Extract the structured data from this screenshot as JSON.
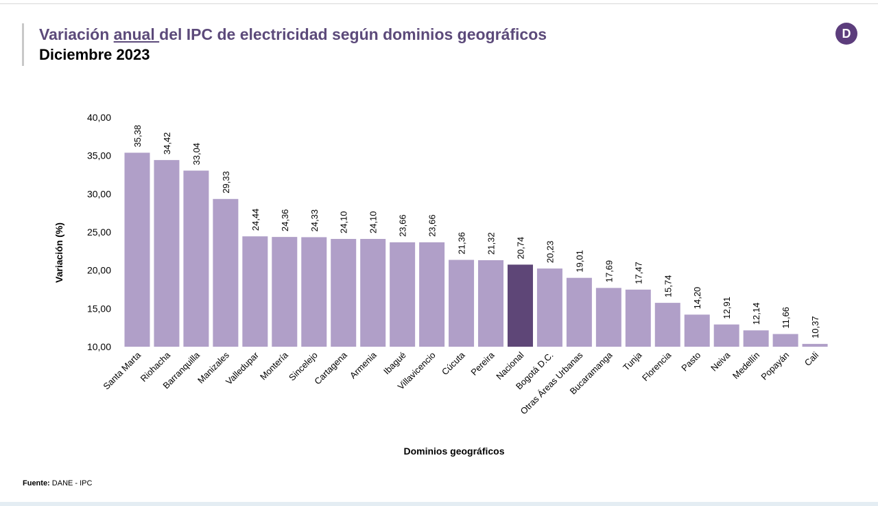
{
  "header": {
    "title_pre": "Variación ",
    "title_underlined": "anual ",
    "title_post": "del IPC de electricidad según dominios geográficos",
    "subtitle": "Diciembre 2023",
    "logo_icon": "dane-logo-icon",
    "logo_letter": "D"
  },
  "footer": {
    "source_label": "Fuente:",
    "source_text": " DANE - IPC"
  },
  "colors": {
    "bar": "#b09fc8",
    "highlight": "#5e4677",
    "title": "#5c4a7a"
  },
  "chart_data": {
    "type": "bar",
    "xlabel": "Dominios geográficos",
    "ylabel": "Variación (%)",
    "ylim": [
      10,
      40
    ],
    "yticks": [
      "10,00",
      "15,00",
      "20,00",
      "25,00",
      "30,00",
      "35,00",
      "40,00"
    ],
    "grid": false,
    "highlight_category": "Nacional",
    "categories": [
      "Santa Marta",
      "Riohacha",
      "Barranquilla",
      "Manizales",
      "Valledupar",
      "Montería",
      "Sincelejo",
      "Cartagena",
      "Armenia",
      "Ibagué",
      "Villavicencio",
      "Cúcuta",
      "Pereira",
      "Nacional",
      "Bogotá D.C.",
      "Otras Áreas Urbanas",
      "Bucaramanga",
      "Tunja",
      "Florencia",
      "Pasto",
      "Neiva",
      "Medellín",
      "Popayán",
      "Cali"
    ],
    "values": [
      35.38,
      34.42,
      33.04,
      29.33,
      24.44,
      24.36,
      24.33,
      24.1,
      24.1,
      23.66,
      23.66,
      21.36,
      21.32,
      20.74,
      20.23,
      19.01,
      17.69,
      17.47,
      15.74,
      14.2,
      12.91,
      12.14,
      11.66,
      10.37
    ],
    "data_labels": [
      "35,38",
      "34,42",
      "33,04",
      "29,33",
      "24,44",
      "24,36",
      "24,33",
      "24,10",
      "24,10",
      "23,66",
      "23,66",
      "21,36",
      "21,32",
      "20,74",
      "20,23",
      "19,01",
      "17,69",
      "17,47",
      "15,74",
      "14,20",
      "12,91",
      "12,14",
      "11,66",
      "10,37"
    ]
  }
}
